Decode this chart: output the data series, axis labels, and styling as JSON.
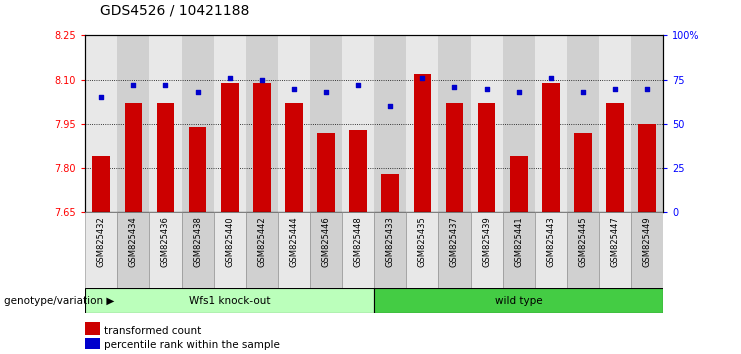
{
  "title": "GDS4526 / 10421188",
  "categories": [
    "GSM825432",
    "GSM825434",
    "GSM825436",
    "GSM825438",
    "GSM825440",
    "GSM825442",
    "GSM825444",
    "GSM825446",
    "GSM825448",
    "GSM825433",
    "GSM825435",
    "GSM825437",
    "GSM825439",
    "GSM825441",
    "GSM825443",
    "GSM825445",
    "GSM825447",
    "GSM825449"
  ],
  "bar_values": [
    7.84,
    8.02,
    8.02,
    7.94,
    8.09,
    8.09,
    8.02,
    7.92,
    7.93,
    7.78,
    8.12,
    8.02,
    8.02,
    7.84,
    8.09,
    7.92,
    8.02,
    7.95
  ],
  "dot_values": [
    65,
    72,
    72,
    68,
    76,
    75,
    70,
    68,
    72,
    60,
    76,
    71,
    70,
    68,
    76,
    68,
    70,
    70
  ],
  "y_min": 7.65,
  "y_max": 8.25,
  "y_ticks": [
    7.65,
    7.8,
    7.95,
    8.1,
    8.25
  ],
  "y_right_ticks": [
    0,
    25,
    50,
    75,
    100
  ],
  "bar_color": "#cc0000",
  "dot_color": "#0000cc",
  "grid_color": "#000000",
  "group1_label": "Wfs1 knock-out",
  "group2_label": "wild type",
  "group1_color": "#bbffbb",
  "group2_color": "#44cc44",
  "group1_count": 9,
  "group2_count": 9,
  "xlabel_genotype": "genotype/variation",
  "legend_bar_label": "transformed count",
  "legend_dot_label": "percentile rank within the sample",
  "title_fontsize": 10,
  "tick_fontsize": 7,
  "label_fontsize": 8,
  "bar_width": 0.55,
  "col_bg_odd": "#d0d0d0",
  "col_bg_even": "#e8e8e8"
}
